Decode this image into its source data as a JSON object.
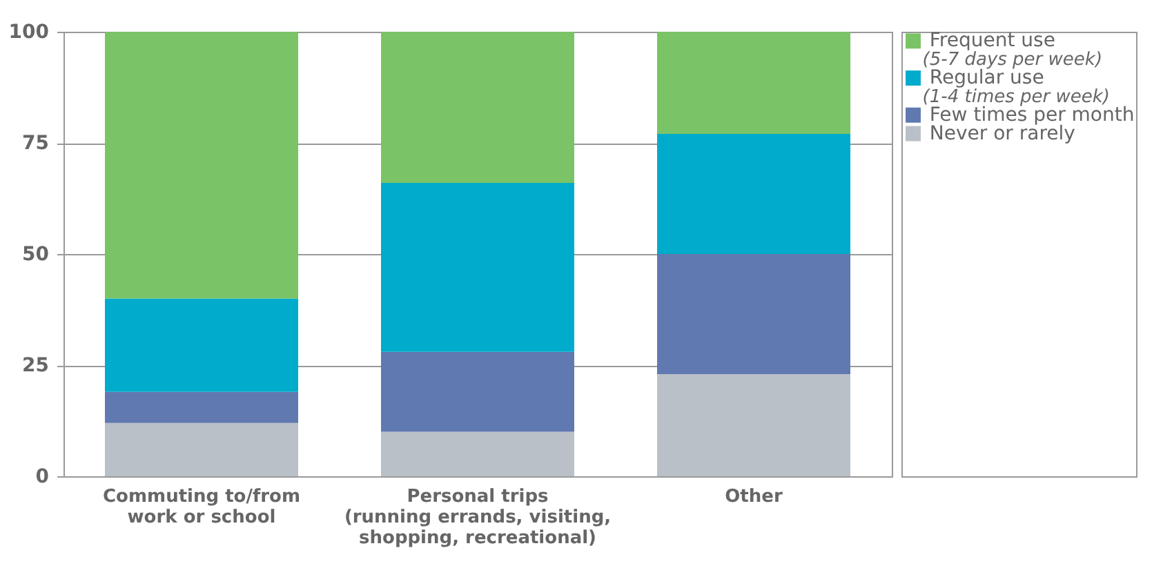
{
  "chart_data": {
    "type": "bar",
    "stacked": true,
    "categories": [
      "Commuting to/from\nwork or school",
      "Personal trips\n(running errands, visiting,\nshopping, recreational)",
      "Other"
    ],
    "series": [
      {
        "name": "Never or rarely",
        "color": "#b9c0c7",
        "values": [
          12,
          10,
          23
        ]
      },
      {
        "name": "Few times per month",
        "color": "#6079b0",
        "values": [
          7,
          18,
          27
        ]
      },
      {
        "name": "Regular use\n(1-4 times per week)",
        "color": "#00abcb",
        "values": [
          21,
          38,
          27
        ]
      },
      {
        "name": "Frequent use\n(5-7 days per week)",
        "color": "#7ac366",
        "values": [
          60,
          34,
          23
        ]
      }
    ],
    "ylim": [
      0,
      100
    ],
    "yticks": [
      0,
      25,
      50,
      75,
      100
    ],
    "grid": "y",
    "legend": "right"
  }
}
